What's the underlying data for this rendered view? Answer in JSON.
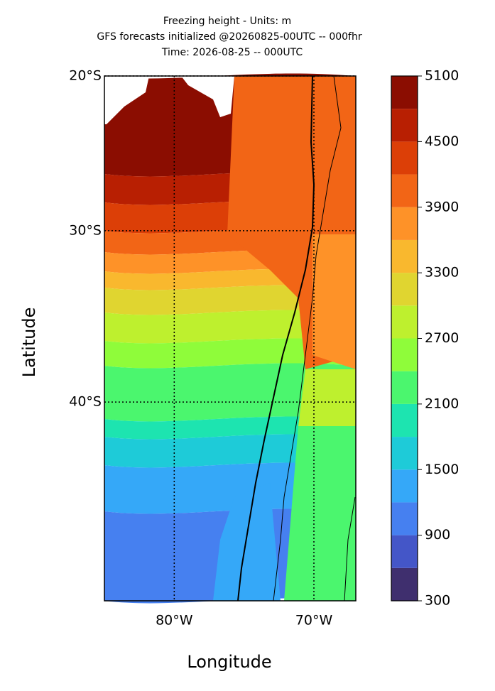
{
  "title": [
    "Freezing height - Units: m",
    "GFS forecasts initialized @20260825-00UTC -- 000fhr",
    "Time: 2026-08-25 -- 000UTC"
  ],
  "map": {
    "xlabel": "Longitude",
    "ylabel": "Latitude",
    "lonlim": [
      -85,
      -67
    ],
    "latlim": [
      -20,
      -50
    ],
    "lonticks": [
      {
        "value": -80,
        "label": "80°W"
      },
      {
        "value": -70,
        "label": "70°W"
      }
    ],
    "latticks": [
      {
        "value": -20,
        "label": "20°S"
      },
      {
        "value": -30,
        "label": "30°S"
      },
      {
        "value": -40,
        "label": "40°S"
      }
    ],
    "grid": true
  },
  "colorbar": {
    "levels": [
      300,
      600,
      900,
      1200,
      1500,
      1800,
      2100,
      2400,
      2700,
      3000,
      3300,
      3600,
      3900,
      4200,
      4500,
      4800,
      5100
    ],
    "colors": [
      "#3f2f6e",
      "#4456c8",
      "#4680f0",
      "#35a8f8",
      "#1ecbd8",
      "#1de4b0",
      "#4bf66e",
      "#8ffc3a",
      "#bef02e",
      "#e0d530",
      "#f9b82e",
      "#fe9228",
      "#f26516",
      "#dc3f07",
      "#b81f02",
      "#8b0d01"
    ],
    "ticks": [
      300,
      900,
      1500,
      2100,
      2700,
      3300,
      3900,
      4500,
      5100
    ]
  }
}
